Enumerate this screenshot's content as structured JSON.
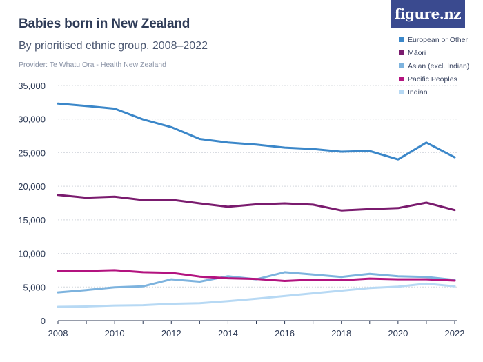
{
  "header": {
    "title": "Babies born in New Zealand",
    "subtitle": "By prioritised ethnic group, 2008–2022",
    "provider": "Provider: Te Whatu Ora - Health New Zealand",
    "brand": "figure.nz"
  },
  "colors": {
    "european": "#3b87c9",
    "maori": "#7a1b6e",
    "asian": "#7db3de",
    "pacific": "#b3137f",
    "indian": "#b7d9f4",
    "brand_bg": "#3a4a8f",
    "grid": "#d4d8de"
  },
  "chart_data": {
    "type": "line",
    "title": "Babies born in New Zealand",
    "subtitle": "By prioritised ethnic group, 2008–2022",
    "xlabel": "",
    "ylabel": "",
    "x": [
      2008,
      2009,
      2010,
      2011,
      2012,
      2013,
      2014,
      2015,
      2016,
      2017,
      2018,
      2019,
      2020,
      2021,
      2022
    ],
    "xticks": [
      "2008",
      "2010",
      "2012",
      "2014",
      "2016",
      "2018",
      "2020",
      "2022"
    ],
    "yticks": [
      "0",
      "5,000",
      "10,000",
      "15,000",
      "20,000",
      "25,000",
      "30,000",
      "35,000"
    ],
    "ylim": [
      0,
      35000
    ],
    "grid": "horizontal",
    "legend_position": "top-right",
    "series": [
      {
        "name": "European or Other",
        "color": "#3b87c9",
        "values": [
          32300,
          31950,
          31550,
          29950,
          28800,
          27050,
          26500,
          26200,
          25750,
          25550,
          25150,
          25250,
          24000,
          26500,
          24300
        ]
      },
      {
        "name": "Māori",
        "color": "#7a1b6e",
        "values": [
          18700,
          18300,
          18450,
          17950,
          18000,
          17450,
          16950,
          17300,
          17450,
          17250,
          16400,
          16600,
          16750,
          17550,
          16450
        ]
      },
      {
        "name": "Asian (excl. Indian)",
        "color": "#7db3de",
        "values": [
          4200,
          4550,
          4950,
          5100,
          6150,
          5800,
          6600,
          6150,
          7200,
          6850,
          6500,
          6950,
          6600,
          6500,
          6050
        ]
      },
      {
        "name": "Pacific Peoples",
        "color": "#b3137f",
        "values": [
          7350,
          7400,
          7500,
          7200,
          7100,
          6550,
          6300,
          6200,
          5900,
          6100,
          6000,
          6250,
          6150,
          6150,
          5950
        ]
      },
      {
        "name": "Indian",
        "color": "#b7d9f4",
        "values": [
          2050,
          2100,
          2250,
          2300,
          2500,
          2600,
          2900,
          3250,
          3650,
          4050,
          4450,
          4850,
          5050,
          5500,
          5100
        ]
      }
    ]
  }
}
